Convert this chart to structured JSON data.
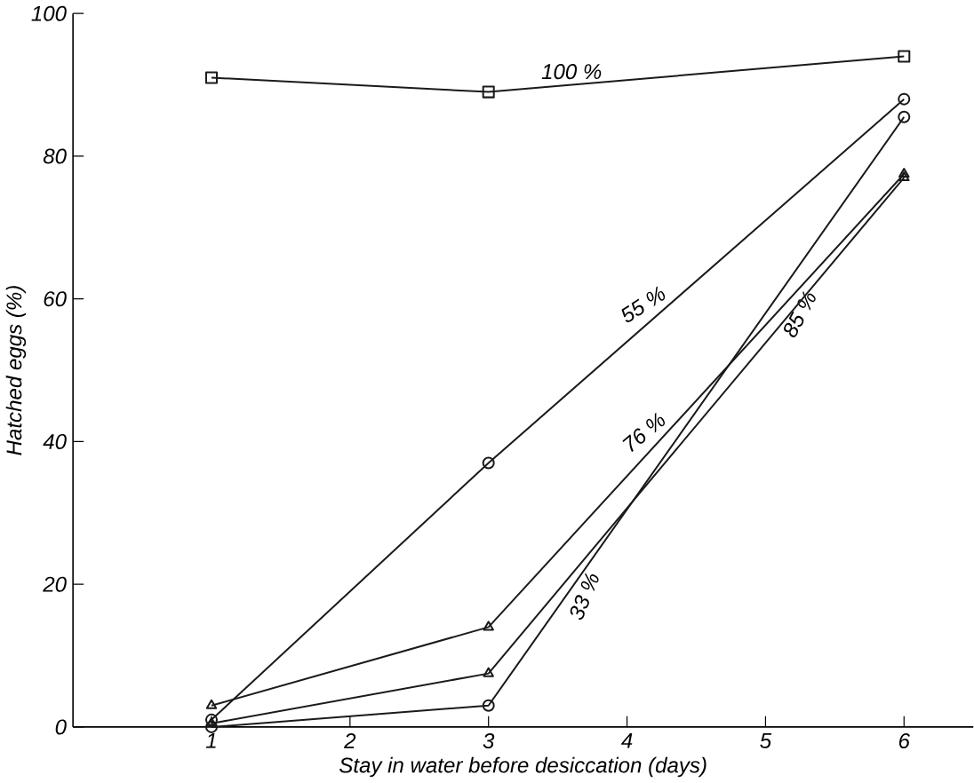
{
  "chart_data": {
    "type": "line",
    "xlabel": "Stay in water before desiccation (days)",
    "ylabel": "Hatched eggs (%)",
    "x": [
      1,
      3,
      6
    ],
    "xlim": [
      0,
      6.5
    ],
    "xticks": [
      1,
      2,
      3,
      4,
      5,
      6
    ],
    "ylim": [
      0,
      100
    ],
    "yticks": [
      0,
      20,
      40,
      60,
      80,
      100
    ],
    "grid": false,
    "legend": false,
    "series": [
      {
        "name": "100 %",
        "color": "#1a1a1a",
        "marker": "square",
        "values": [
          91,
          89,
          94
        ]
      },
      {
        "name": "55 %",
        "color": "#1a1a1a",
        "marker": "circle",
        "values": [
          1,
          37,
          88
        ]
      },
      {
        "name": "76 %",
        "color": "#1a1a1a",
        "marker": "triangle",
        "values": [
          3,
          14,
          77.5
        ]
      },
      {
        "name": "85 %",
        "color": "#1a1a1a",
        "marker": "circle",
        "values": [
          0,
          3,
          85.5
        ]
      },
      {
        "name": "33 %",
        "color": "#1a1a1a",
        "marker": "triangle",
        "values": [
          0.5,
          7.5,
          77
        ]
      }
    ]
  }
}
